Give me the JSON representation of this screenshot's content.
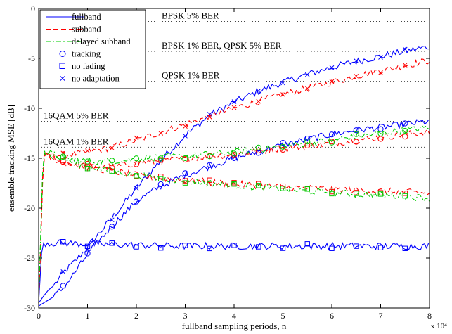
{
  "chart_data": {
    "type": "line",
    "xlabel": "fullband sampling periods, n",
    "ylabel": "ensemble tracking MSE [dB]",
    "x_multiplier_label": "x 10⁴",
    "xlim": [
      0,
      8
    ],
    "ylim": [
      -30,
      0
    ],
    "x_ticks": [
      "0",
      "1",
      "2",
      "3",
      "4",
      "5",
      "6",
      "7",
      "8"
    ],
    "y_ticks": [
      "0",
      "-5",
      "-10",
      "-15",
      "-20",
      "-25",
      "-30"
    ],
    "grid": false,
    "legend_position": "top-left",
    "legend": [
      {
        "label": "fullband",
        "kind": "line",
        "color": "#0000ff",
        "dash": "solid"
      },
      {
        "label": "subband",
        "kind": "line",
        "color": "#ff0000",
        "dash": "dashed"
      },
      {
        "label": "delayed subband",
        "kind": "line",
        "color": "#00cc00",
        "dash": "dashdot"
      },
      {
        "label": "tracking",
        "kind": "marker",
        "color": "#0000ff",
        "marker": "circle"
      },
      {
        "label": "no fading",
        "kind": "marker",
        "color": "#0000ff",
        "marker": "square"
      },
      {
        "label": "no adaptation",
        "kind": "marker",
        "color": "#0000ff",
        "marker": "x"
      }
    ],
    "reference_lines": [
      {
        "label": "BPSK 5% BER",
        "y": -1.3
      },
      {
        "label": "BPSK 1% BER, QPSK 5% BER",
        "y": -4.3
      },
      {
        "label": "QPSK 1% BER",
        "y": -7.3
      },
      {
        "label": "16QAM 5% BER",
        "y": -11.3
      },
      {
        "label": "16QAM 1% BER",
        "y": -13.9
      }
    ],
    "series": [
      {
        "algorithm": "fullband",
        "scenario": "no adaptation",
        "color": "#0000ff",
        "dash": "solid",
        "marker": "x",
        "x": [
          0,
          0.1,
          0.2,
          0.3,
          0.5,
          0.75,
          1,
          1.5,
          2,
          2.5,
          3,
          3.5,
          4,
          4.5,
          5,
          5.5,
          6,
          6.5,
          7,
          7.5,
          8
        ],
        "y": [
          -29.5,
          -28.8,
          -28.2,
          -27.8,
          -26.5,
          -25.3,
          -23.9,
          -21.0,
          -18.0,
          -15.2,
          -12.7,
          -10.7,
          -9.4,
          -8.3,
          -7.4,
          -6.6,
          -5.9,
          -5.3,
          -4.8,
          -4.3,
          -3.8
        ]
      },
      {
        "algorithm": "subband",
        "scenario": "no adaptation",
        "color": "#ff0000",
        "dash": "dashed",
        "marker": "x",
        "x": [
          0,
          0.04,
          0.08,
          0.12,
          0.5,
          1,
          1.5,
          2,
          2.5,
          3,
          3.5,
          4,
          4.5,
          5,
          5.5,
          6,
          6.5,
          7,
          7.5,
          8
        ],
        "y": [
          -29.5,
          -24.0,
          -17.0,
          -14.6,
          -14.7,
          -14.4,
          -13.9,
          -13.2,
          -12.4,
          -11.6,
          -10.8,
          -10.0,
          -9.3,
          -8.6,
          -8.0,
          -7.4,
          -6.8,
          -6.2,
          -5.7,
          -5.2
        ]
      },
      {
        "algorithm": "fullband",
        "scenario": "tracking",
        "color": "#0000ff",
        "dash": "solid",
        "marker": "circle",
        "x": [
          0,
          0.1,
          0.2,
          0.3,
          0.5,
          0.75,
          1,
          1.5,
          2,
          2.5,
          3,
          3.5,
          4,
          4.5,
          5,
          5.5,
          6,
          6.5,
          7,
          7.5,
          8
        ],
        "y": [
          -29.8,
          -29.5,
          -29.2,
          -28.9,
          -28.0,
          -26.4,
          -24.6,
          -21.8,
          -19.3,
          -17.8,
          -16.7,
          -15.8,
          -15.0,
          -14.3,
          -13.7,
          -13.1,
          -12.6,
          -12.2,
          -11.9,
          -11.6,
          -11.3
        ]
      },
      {
        "algorithm": "subband",
        "scenario": "tracking",
        "color": "#ff0000",
        "dash": "dashed",
        "marker": "circle",
        "x": [
          0,
          0.04,
          0.08,
          0.12,
          0.5,
          1,
          1.5,
          2,
          2.5,
          3,
          3.5,
          4,
          4.5,
          5,
          5.5,
          6,
          6.5,
          7,
          7.5,
          8
        ],
        "y": [
          -29.5,
          -24.0,
          -17.5,
          -14.7,
          -15.4,
          -15.8,
          -15.9,
          -15.5,
          -15.3,
          -15.0,
          -14.8,
          -14.6,
          -14.3,
          -14.0,
          -13.8,
          -13.5,
          -13.2,
          -12.9,
          -12.6,
          -12.4
        ]
      },
      {
        "algorithm": "delayed subband",
        "scenario": "tracking",
        "color": "#00cc00",
        "dash": "dashdot",
        "marker": "circle",
        "x": [
          0,
          0.04,
          0.08,
          0.12,
          0.5,
          1,
          1.5,
          2,
          2.5,
          3,
          3.5,
          4,
          4.5,
          5,
          5.5,
          6,
          6.5,
          7,
          7.5,
          8
        ],
        "y": [
          -29.5,
          -23.0,
          -16.5,
          -14.3,
          -15.0,
          -15.3,
          -15.3,
          -15.1,
          -14.9,
          -14.8,
          -14.6,
          -14.4,
          -14.1,
          -13.8,
          -13.5,
          -13.2,
          -12.8,
          -12.5,
          -12.2,
          -11.9
        ]
      },
      {
        "algorithm": "fullband",
        "scenario": "no fading",
        "color": "#0000ff",
        "dash": "solid",
        "marker": "square",
        "x": [
          0,
          0.03,
          0.06,
          0.1,
          0.5,
          1,
          2,
          3,
          4,
          5,
          6,
          7,
          8
        ],
        "y": [
          -29.5,
          -27.0,
          -24.5,
          -23.5,
          -23.5,
          -23.6,
          -23.7,
          -23.8,
          -23.8,
          -23.8,
          -23.8,
          -23.8,
          -23.8
        ]
      },
      {
        "algorithm": "subband",
        "scenario": "no fading",
        "color": "#ff0000",
        "dash": "dashed",
        "marker": "square",
        "x": [
          0,
          0.04,
          0.08,
          0.12,
          0.5,
          1,
          1.5,
          2,
          2.5,
          3,
          3.5,
          4,
          4.5,
          5,
          5.5,
          6,
          6.5,
          7,
          7.5,
          8
        ],
        "y": [
          -29.5,
          -24.0,
          -17.0,
          -14.8,
          -15.3,
          -15.9,
          -16.3,
          -16.7,
          -17.0,
          -17.2,
          -17.4,
          -17.6,
          -17.7,
          -17.9,
          -18.0,
          -18.1,
          -18.2,
          -18.3,
          -18.4,
          -18.5
        ]
      },
      {
        "algorithm": "delayed subband",
        "scenario": "no fading",
        "color": "#00cc00",
        "dash": "dashdot",
        "marker": "square",
        "x": [
          0,
          0.04,
          0.08,
          0.12,
          0.5,
          1,
          1.5,
          2,
          2.5,
          3,
          3.5,
          4,
          4.5,
          5,
          5.5,
          6,
          6.5,
          7,
          7.5,
          8
        ],
        "y": [
          -29.5,
          -23.0,
          -16.5,
          -14.5,
          -15.1,
          -15.8,
          -16.3,
          -16.7,
          -17.0,
          -17.3,
          -17.5,
          -17.7,
          -17.9,
          -18.1,
          -18.3,
          -18.4,
          -18.6,
          -18.7,
          -18.8,
          -19.0
        ]
      }
    ]
  }
}
